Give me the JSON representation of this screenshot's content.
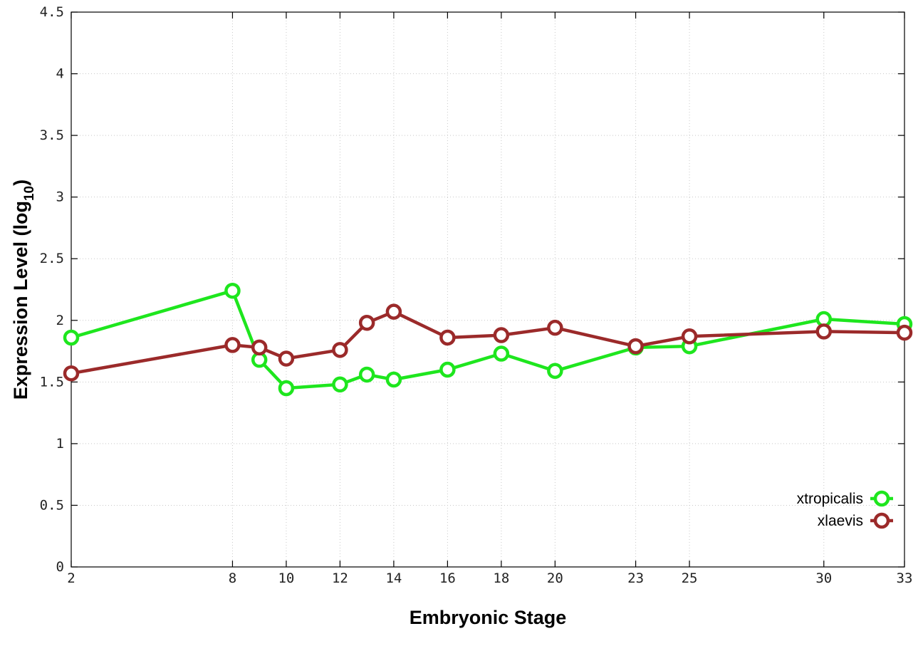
{
  "chart_data": {
    "type": "line",
    "xlabel": "Embryonic Stage",
    "ylabel_main": "Expression Level (log",
    "ylabel_sub": "10",
    "ylabel_close": ")",
    "xlim": [
      2,
      33
    ],
    "ylim": [
      0,
      4.5
    ],
    "x_ticks": [
      2,
      8,
      10,
      12,
      14,
      16,
      18,
      20,
      23,
      25,
      30,
      33
    ],
    "y_ticks": [
      0,
      0.5,
      1,
      1.5,
      2,
      2.5,
      3,
      3.5,
      4,
      4.5
    ],
    "grid": true,
    "legend_position": "bottom-right",
    "series": [
      {
        "name": "xtropicalis",
        "color": "#1ee61e",
        "x": [
          2,
          8,
          9,
          10,
          12,
          13,
          14,
          16,
          18,
          20,
          23,
          25,
          30,
          33
        ],
        "y": [
          1.86,
          2.24,
          1.68,
          1.45,
          1.48,
          1.56,
          1.52,
          1.6,
          1.73,
          1.59,
          1.78,
          1.79,
          2.01,
          1.97
        ]
      },
      {
        "name": "xlaevis",
        "color": "#9b2a2a",
        "x": [
          2,
          8,
          9,
          10,
          12,
          13,
          14,
          16,
          18,
          20,
          23,
          25,
          30,
          33
        ],
        "y": [
          1.57,
          1.8,
          1.78,
          1.69,
          1.76,
          1.98,
          2.07,
          1.86,
          1.88,
          1.94,
          1.79,
          1.87,
          1.91,
          1.9
        ]
      }
    ]
  }
}
